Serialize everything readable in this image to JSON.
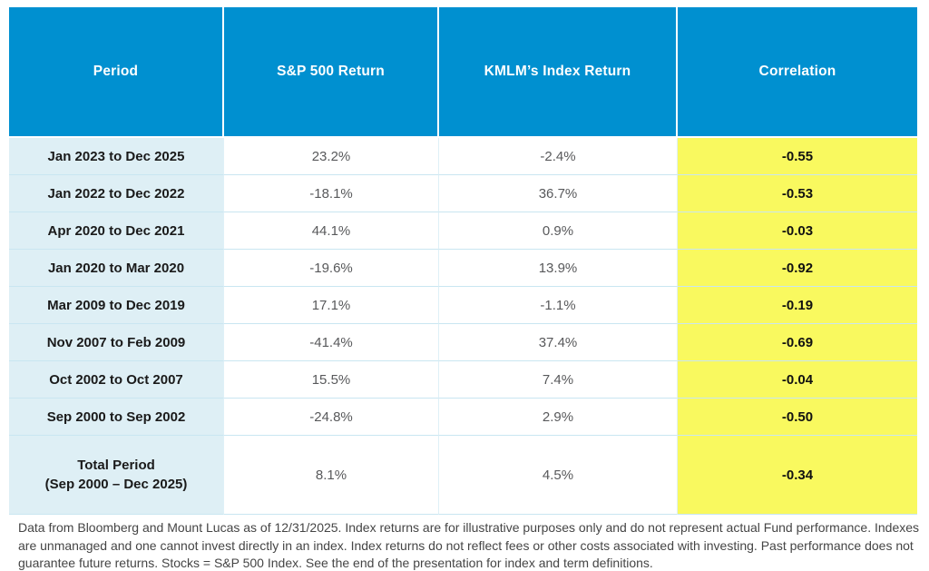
{
  "chart_data": {
    "type": "table",
    "columns": [
      "Period",
      "S&P 500 Return",
      "KMLM’s Index Return",
      "Correlation"
    ],
    "rows": [
      {
        "period": "Jan 2023 to Dec 2025",
        "sp500": "23.2%",
        "kmlm": "-2.4%",
        "correlation": "-0.55"
      },
      {
        "period": "Jan 2022 to Dec 2022",
        "sp500": "-18.1%",
        "kmlm": "36.7%",
        "correlation": "-0.53"
      },
      {
        "period": "Apr 2020 to Dec 2021",
        "sp500": "44.1%",
        "kmlm": "0.9%",
        "correlation": "-0.03"
      },
      {
        "period": "Jan 2020 to Mar 2020",
        "sp500": "-19.6%",
        "kmlm": "13.9%",
        "correlation": "-0.92"
      },
      {
        "period": "Mar 2009 to Dec 2019",
        "sp500": "17.1%",
        "kmlm": "-1.1%",
        "correlation": "-0.19"
      },
      {
        "period": "Nov 2007 to Feb 2009",
        "sp500": "-41.4%",
        "kmlm": "37.4%",
        "correlation": "-0.69"
      },
      {
        "period": "Oct 2002 to Oct 2007",
        "sp500": "15.5%",
        "kmlm": "7.4%",
        "correlation": "-0.04"
      },
      {
        "period": "Sep 2000 to Sep 2002",
        "sp500": "-24.8%",
        "kmlm": "2.9%",
        "correlation": "-0.50"
      },
      {
        "period_line1": "Total Period",
        "period_line2": "(Sep 2000 – Dec 2025)",
        "sp500": "8.1%",
        "kmlm": "4.5%",
        "correlation": "-0.34"
      }
    ]
  },
  "footnote": "Data from Bloomberg and Mount Lucas as of 12/31/2025. Index returns are for illustrative purposes only and do not represent actual Fund performance. Indexes are unmanaged and one cannot invest directly in an index. Index returns do not reflect fees or other costs associated with investing. Past performance does not guarantee future returns. Stocks = S&P 500 Index. See the end of the presentation for index and term definitions.",
  "colors": {
    "header_blue": "#0090D0",
    "period_light_blue": "#DEEFF5",
    "correlation_yellow": "#F9F95F",
    "grid_line": "#C9E6F1",
    "value_gray": "#58595B"
  }
}
